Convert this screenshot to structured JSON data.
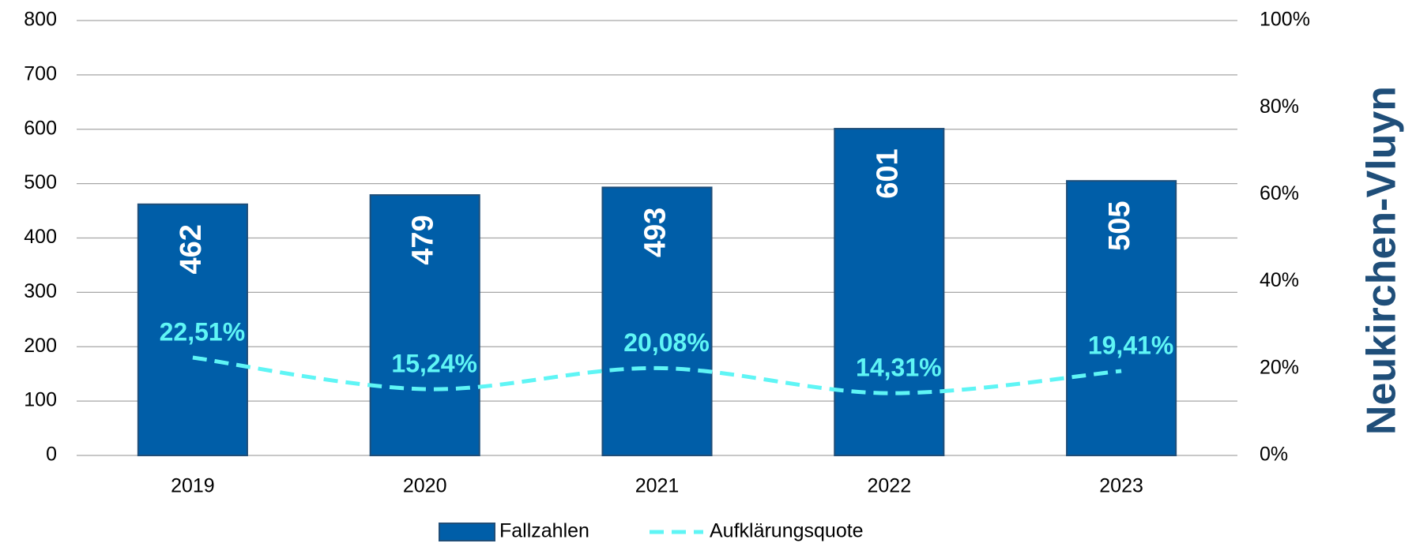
{
  "chart_data": {
    "type": "bar",
    "title": "Neukirchen-Vluyn",
    "categories": [
      "2019",
      "2020",
      "2021",
      "2022",
      "2023"
    ],
    "series": [
      {
        "name": "Fallzahlen",
        "type": "bar",
        "color": "#005ea8",
        "values": [
          462,
          479,
          493,
          601,
          505
        ]
      },
      {
        "name": "Aufklärungsquote",
        "type": "line",
        "axis": "y2",
        "color": "#5ff5f5",
        "values": [
          22.51,
          15.24,
          20.08,
          14.31,
          19.41
        ],
        "value_labels": [
          "22,51%",
          "15,24%",
          "20,08%",
          "14,31%",
          "19,41%"
        ]
      }
    ],
    "ylim": [
      0,
      800
    ],
    "yticks": [
      0,
      100,
      200,
      300,
      400,
      500,
      600,
      700,
      800
    ],
    "y2lim": [
      0,
      100
    ],
    "y2ticks": [
      {
        "value": 0,
        "label": "0%"
      },
      {
        "value": 20,
        "label": "20%"
      },
      {
        "value": 40,
        "label": "40%"
      },
      {
        "value": 60,
        "label": "60%"
      },
      {
        "value": 80,
        "label": "80%"
      },
      {
        "value": 100,
        "label": "100%"
      }
    ],
    "grid": true,
    "legend": "bottom"
  }
}
